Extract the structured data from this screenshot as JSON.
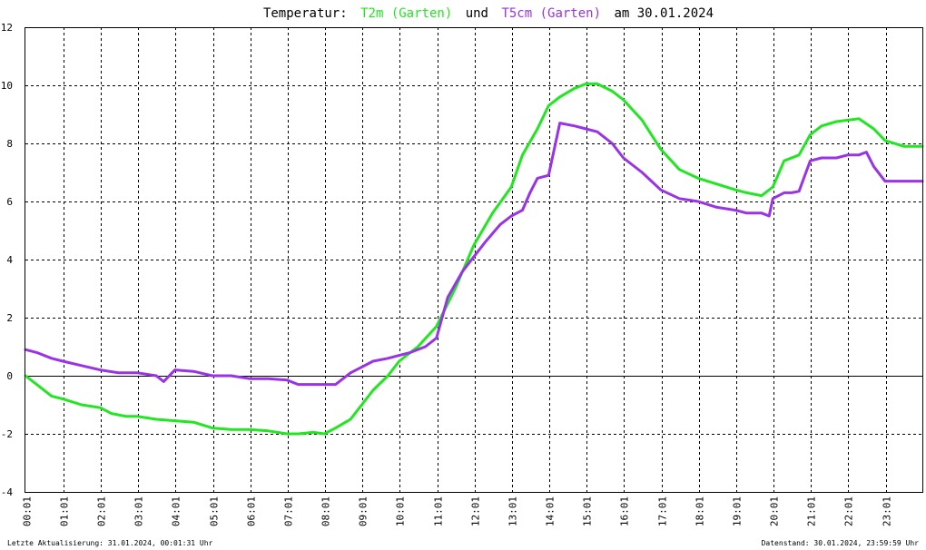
{
  "title": {
    "prefix": "Temperatur:",
    "series1": "T2m (Garten)",
    "connector": "und",
    "series2": "T5cm (Garten)",
    "suffix": "am 30.01.2024"
  },
  "footer": {
    "left": "Letzte Aktualisierung: 31.01.2024, 00:01:31 Uhr",
    "right": "Datenstand: 30.01.2024, 23:59:59 Uhr"
  },
  "colors": {
    "t2m": "#22e622",
    "t5cm": "#9933e6",
    "grid": "#000000",
    "background": "#ffffff"
  },
  "chart_data": {
    "type": "line",
    "title": "Temperatur: T2m (Garten) und T5cm (Garten) am 30.01.2024",
    "xlabel": "",
    "ylabel": "",
    "xlim": [
      0,
      24
    ],
    "ylim": [
      -4,
      12
    ],
    "grid": true,
    "x_ticks": [
      "00:01",
      "01:01",
      "02:01",
      "03:01",
      "04:01",
      "05:01",
      "06:01",
      "07:01",
      "08:01",
      "09:01",
      "10:01",
      "11:01",
      "12:01",
      "13:01",
      "14:01",
      "15:01",
      "16:01",
      "17:01",
      "18:01",
      "19:01",
      "20:01",
      "21:01",
      "22:01",
      "23:01"
    ],
    "y_ticks": [
      -4,
      -2,
      0,
      2,
      4,
      6,
      8,
      10,
      12
    ],
    "series": [
      {
        "name": "T2m (Garten)",
        "color": "#22e622",
        "x": [
          0,
          0.3,
          0.7,
          1,
          1.5,
          2,
          2.3,
          2.7,
          3,
          3.5,
          4,
          4.5,
          5,
          5.5,
          6,
          6.5,
          7,
          7.3,
          7.7,
          8,
          8.3,
          8.7,
          9,
          9.3,
          9.7,
          10,
          10.5,
          11,
          11.5,
          12,
          12.5,
          13,
          13.3,
          13.7,
          14,
          14.3,
          14.7,
          15,
          15.3,
          15.7,
          16,
          16.5,
          17,
          17.5,
          18,
          18.5,
          19,
          19.3,
          19.7,
          20,
          20.3,
          20.7,
          21,
          21.3,
          21.7,
          22,
          22.3,
          22.7,
          23,
          23.5,
          24
        ],
        "values": [
          0,
          -0.3,
          -0.7,
          -0.8,
          -1.0,
          -1.1,
          -1.3,
          -1.4,
          -1.4,
          -1.5,
          -1.55,
          -1.6,
          -1.8,
          -1.85,
          -1.85,
          -1.9,
          -2.0,
          -2.0,
          -1.95,
          -2.0,
          -1.8,
          -1.5,
          -1.0,
          -0.5,
          0,
          0.5,
          1.0,
          1.7,
          3.0,
          4.5,
          5.6,
          6.5,
          7.6,
          8.5,
          9.3,
          9.6,
          9.9,
          10.05,
          10.05,
          9.8,
          9.5,
          8.8,
          7.8,
          7.1,
          6.8,
          6.6,
          6.4,
          6.3,
          6.2,
          6.5,
          7.4,
          7.6,
          8.3,
          8.6,
          8.75,
          8.8,
          8.85,
          8.5,
          8.1,
          7.9,
          7.9
        ]
      },
      {
        "name": "T5cm (Garten)",
        "color": "#9933e6",
        "x": [
          0,
          0.3,
          0.7,
          1,
          1.5,
          2,
          2.5,
          3,
          3.5,
          3.7,
          4,
          4.5,
          5,
          5.5,
          6,
          6.5,
          7,
          7.3,
          7.7,
          8,
          8.3,
          8.7,
          9,
          9.3,
          9.7,
          10,
          10.3,
          10.7,
          11,
          11.3,
          11.7,
          12,
          12.3,
          12.7,
          13,
          13.3,
          13.5,
          13.7,
          14,
          14.3,
          14.7,
          15,
          15.3,
          15.7,
          16,
          16.5,
          17,
          17.5,
          18,
          18.5,
          19,
          19.3,
          19.7,
          19.9,
          20,
          20.3,
          20.5,
          20.7,
          21,
          21.3,
          21.7,
          22,
          22.3,
          22.5,
          22.7,
          23,
          23.3,
          23.7,
          24
        ],
        "values": [
          0.9,
          0.8,
          0.6,
          0.5,
          0.35,
          0.2,
          0.1,
          0.1,
          0.0,
          -0.2,
          0.2,
          0.15,
          0.0,
          0.0,
          -0.1,
          -0.1,
          -0.15,
          -0.3,
          -0.3,
          -0.3,
          -0.3,
          0.1,
          0.3,
          0.5,
          0.6,
          0.7,
          0.8,
          1.0,
          1.3,
          2.7,
          3.6,
          4.1,
          4.6,
          5.2,
          5.5,
          5.7,
          6.3,
          6.8,
          6.9,
          8.7,
          8.6,
          8.5,
          8.4,
          8.0,
          7.5,
          7.0,
          6.4,
          6.1,
          6.0,
          5.8,
          5.7,
          5.6,
          5.6,
          5.5,
          6.1,
          6.3,
          6.3,
          6.35,
          7.4,
          7.5,
          7.5,
          7.6,
          7.6,
          7.7,
          7.2,
          6.7,
          6.7,
          6.7,
          6.7
        ]
      }
    ]
  }
}
